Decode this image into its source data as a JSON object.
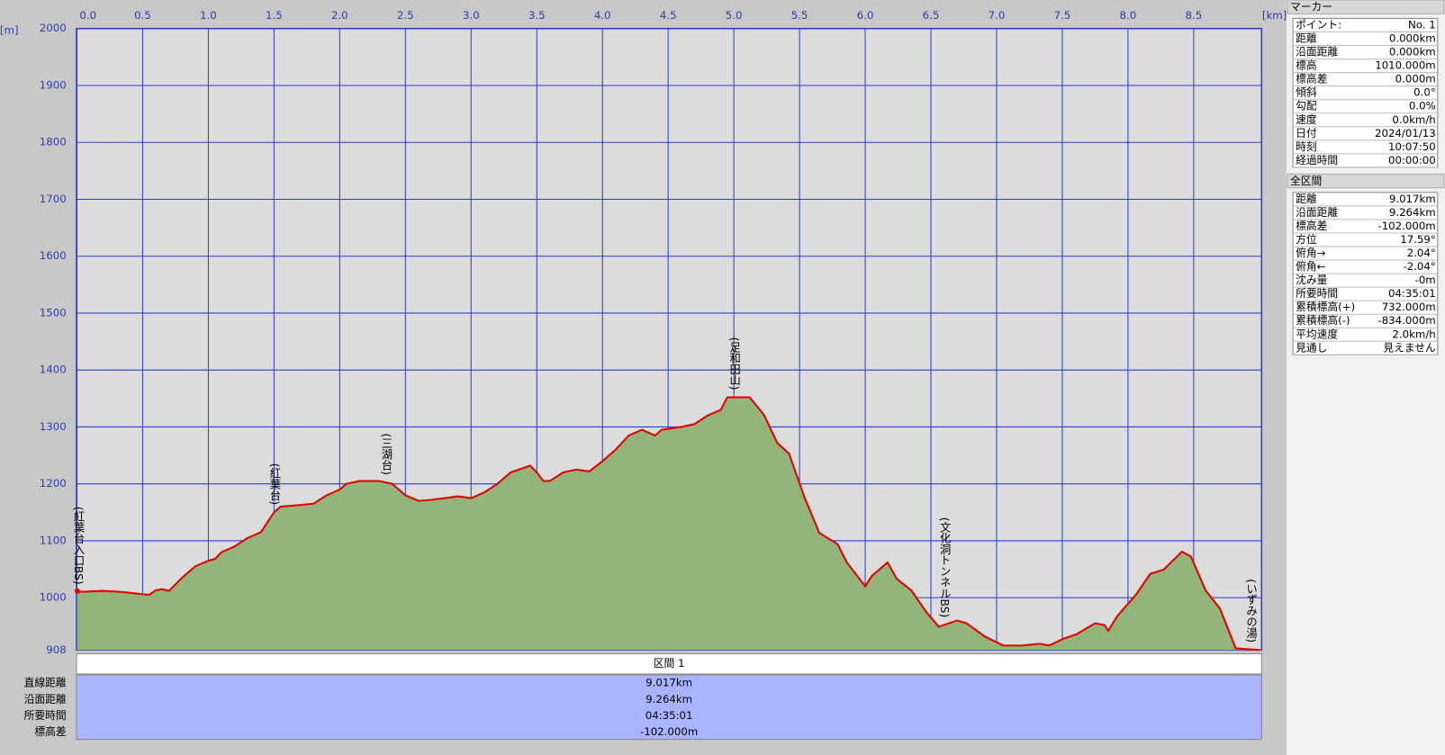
{
  "chart_data": {
    "type": "area",
    "x_label": "[km]",
    "y_label": "[m]",
    "x": [
      0,
      0.2,
      0.35,
      0.5,
      0.55,
      0.6,
      0.65,
      0.7,
      0.8,
      0.9,
      1.0,
      1.05,
      1.1,
      1.2,
      1.3,
      1.4,
      1.5,
      1.55,
      1.7,
      1.8,
      1.9,
      2.0,
      2.05,
      2.15,
      2.3,
      2.4,
      2.5,
      2.6,
      2.7,
      2.8,
      2.9,
      3.0,
      3.1,
      3.2,
      3.3,
      3.4,
      3.45,
      3.5,
      3.55,
      3.6,
      3.7,
      3.8,
      3.9,
      4.0,
      4.1,
      4.2,
      4.3,
      4.35,
      4.4,
      4.45,
      4.6,
      4.7,
      4.8,
      4.9,
      4.95,
      5.12,
      5.23,
      5.33,
      5.42,
      5.54,
      5.65,
      5.79,
      5.86,
      6.0,
      6.05,
      6.17,
      6.24,
      6.35,
      6.47,
      6.56,
      6.7,
      6.77,
      6.91,
      7.05,
      7.19,
      7.33,
      7.4,
      7.51,
      7.61,
      7.75,
      7.82,
      7.85,
      7.92,
      8.06,
      8.17,
      8.27,
      8.41,
      8.48,
      8.59,
      8.7,
      8.82,
      9.0
    ],
    "values": [
      1010,
      1012,
      1010,
      1006,
      1005,
      1013,
      1015,
      1012,
      1035,
      1055,
      1065,
      1068,
      1080,
      1090,
      1105,
      1115,
      1150,
      1160,
      1163,
      1165,
      1180,
      1190,
      1200,
      1205,
      1205,
      1200,
      1180,
      1170,
      1172,
      1175,
      1178,
      1175,
      1185,
      1200,
      1220,
      1228,
      1232,
      1220,
      1205,
      1205,
      1220,
      1225,
      1222,
      1240,
      1260,
      1285,
      1295,
      1290,
      1285,
      1295,
      1300,
      1305,
      1320,
      1330,
      1352,
      1352,
      1321,
      1272,
      1253,
      1175,
      1114,
      1094,
      1062,
      1020,
      1038,
      1062,
      1033,
      1013,
      973,
      949,
      960,
      955,
      932,
      916,
      916,
      919,
      916,
      928,
      936,
      955,
      952,
      942,
      968,
      1005,
      1042,
      1049,
      1081,
      1072,
      1013,
      981,
      911,
      908
    ],
    "color": "#e00000",
    "fill": "#93b57a",
    "xlim": [
      0,
      9.017
    ],
    "ylim": [
      908,
      2000
    ],
    "xticks": [
      {
        "value": 0,
        "label": "0.0"
      },
      0.5,
      {
        "value": 1,
        "label": "1.0"
      },
      1.5,
      {
        "value": 2,
        "label": "2.0"
      },
      2.5,
      {
        "value": 3,
        "label": "3.0"
      },
      3.5,
      {
        "value": 4,
        "label": "4.0"
      },
      4.5,
      {
        "value": 5,
        "label": "5.0"
      },
      5.5,
      {
        "value": 6,
        "label": "6.0"
      },
      6.5,
      {
        "value": 7,
        "label": "7.0"
      },
      7.5,
      {
        "value": 8,
        "label": "8.0"
      },
      8.5
    ],
    "yticks": [
      908,
      1000,
      1100,
      1200,
      1300,
      1400,
      1500,
      1600,
      1700,
      1800,
      1900,
      2000
    ],
    "grid": true,
    "annotations": [
      {
        "x": 0,
        "label": "(紅葉台入口BS)"
      },
      {
        "x": 1.5,
        "label": "(紅葉台)"
      },
      {
        "x": 2.35,
        "label": "(三湖台)"
      },
      {
        "x": 5.0,
        "label": "(足和田山)"
      },
      {
        "x": 6.6,
        "label": "(文化洞トンネルBS)"
      },
      {
        "x": 9.0,
        "label": "(いずみの湯)"
      }
    ]
  },
  "section_table": {
    "header": "区間 1",
    "rows": [
      [
        "直線距離",
        "9.017km"
      ],
      [
        "沿面距離",
        "9.264km"
      ],
      [
        "所要時間",
        "04:35:01"
      ],
      [
        "標高差",
        "-102.000m"
      ]
    ]
  },
  "marker_panel": {
    "title": "マーカー",
    "rows": [
      [
        "ポイント:",
        "No. 1"
      ],
      [
        "距離",
        "0.000km"
      ],
      [
        "沿面距離",
        "0.000km"
      ],
      [
        "標高",
        "1010.000m"
      ],
      [
        "標高差",
        "0.000m"
      ],
      [
        "傾斜",
        "0.0°"
      ],
      [
        "勾配",
        "0.0%"
      ],
      [
        "速度",
        "0.0km/h"
      ],
      [
        "日付",
        "2024/01/13"
      ],
      [
        "時刻",
        "10:07:50"
      ],
      [
        "経過時間",
        "00:00:00"
      ]
    ]
  },
  "total_panel": {
    "title": "全区間",
    "rows": [
      [
        "距離",
        "9.017km"
      ],
      [
        "沿面距離",
        "9.264km"
      ],
      [
        "標高差",
        "-102.000m"
      ],
      [
        "方位",
        "17.59°"
      ],
      [
        "俯角→",
        "2.04°"
      ],
      [
        "俯角←",
        "-2.04°"
      ],
      [
        "沈み量",
        "-0m"
      ],
      [
        "所要時間",
        "04:35:01"
      ],
      [
        "累積標高(+)",
        "732.000m"
      ],
      [
        "累積標高(-)",
        "-834.000m"
      ],
      [
        "平均速度",
        "2.0km/h"
      ],
      [
        "見通し",
        "見えません"
      ]
    ]
  }
}
